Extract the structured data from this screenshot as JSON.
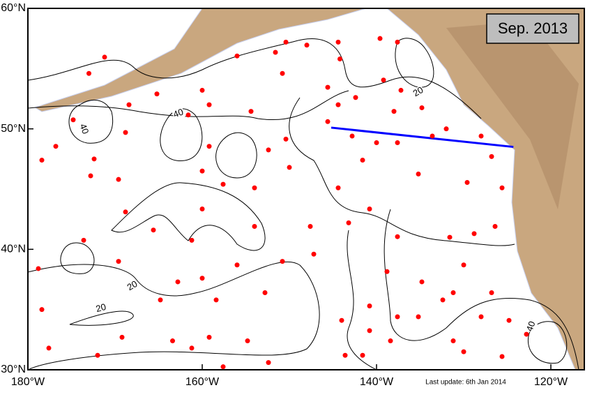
{
  "map": {
    "title": "Sep. 2013",
    "footnote": "Last update: 6th Jan 2014",
    "xlim": [
      -180,
      -116.16
    ],
    "ylim": [
      30,
      60
    ],
    "xticks": [
      {
        "value": -180,
        "label": "180°W"
      },
      {
        "value": -160,
        "label": "160°W"
      },
      {
        "value": -140,
        "label": "140°W"
      },
      {
        "value": -120,
        "label": "120°W"
      }
    ],
    "yticks": [
      {
        "value": 30,
        "label": "30°N"
      },
      {
        "value": 40,
        "label": "40°N"
      },
      {
        "value": 50,
        "label": "50°N"
      },
      {
        "value": 60,
        "label": "60°N"
      }
    ],
    "contour_labels": [
      "40",
      "40",
      "20",
      "20",
      "20",
      "40"
    ],
    "section": {
      "color": "#0000ff",
      "lon": [
        -145.2,
        -124.3
      ],
      "lat": [
        50.1,
        48.5
      ]
    },
    "floats": {
      "color": "#ff0000",
      "lon": [
        -171.2,
        -173.0,
        -174.8,
        -176.8,
        -172.4,
        -172.8,
        -169.6,
        -168.8,
        -173.6,
        -169.6,
        -178.4,
        -177.6,
        -172.0,
        -169.2,
        -164.8,
        -163.4,
        -161.2,
        -159.2,
        -157.6,
        -154.8,
        -152.4,
        -152.8,
        -150.8,
        -147.2,
        -147.6,
        -154.0,
        -156.0,
        -158.4,
        -160.0,
        -162.8,
        -165.6,
        -161.2,
        -160.0,
        -157.6,
        -154.0,
        -150.0,
        -152.4,
        -150.4,
        -154.4,
        -159.2,
        -161.6,
        -160.0,
        -165.2,
        -168.4,
        -168.8,
        -159.2,
        -160.0,
        -156.0,
        -151.6,
        -150.4,
        -148.0,
        -150.8,
        -145.6,
        -144.4,
        -145.6,
        -144.2,
        -144.4,
        -142.4,
        -142.8,
        -140.0,
        -141.6,
        -139.6,
        -137.6,
        -139.2,
        -137.2,
        -138.0,
        -137.6,
        -134.8,
        -133.6,
        -135.2,
        -132.0,
        -129.6,
        -128.0,
        -126.8,
        -125.6,
        -126.4,
        -128.8,
        -131.6,
        -130.0,
        -131.2,
        -128.0,
        -126.8,
        -124.8,
        -125.6,
        -122.8,
        -132.4,
        -134.8,
        -135.2,
        -137.6,
        -138.8,
        -137.6,
        -140.8,
        -140.8,
        -140.8,
        -138.4,
        -141.6,
        -143.6,
        -144.0,
        -144.4,
        -143.2,
        -131.2,
        -130.0,
        -178.4,
        -178.8
      ],
      "lat": [
        55.95,
        54.6,
        50.75,
        48.55,
        47.5,
        46.1,
        45.8,
        43.1,
        40.75,
        39.0,
        35.0,
        31.8,
        31.2,
        32.7,
        35.8,
        32.4,
        31.8,
        32.7,
        30.25,
        32.4,
        30.6,
        36.4,
        39.0,
        39.6,
        41.9,
        41.9,
        38.7,
        35.8,
        37.6,
        37.3,
        41.6,
        40.75,
        43.35,
        45.4,
        45.1,
        46.8,
        48.25,
        49.15,
        51.45,
        52.0,
        51.15,
        53.2,
        52.9,
        52.0,
        49.7,
        48.55,
        46.5,
        56.05,
        56.35,
        57.2,
        56.95,
        54.6,
        53.45,
        52.0,
        50.6,
        55.8,
        57.2,
        52.6,
        49.4,
        48.85,
        47.4,
        57.5,
        57.2,
        54.05,
        53.2,
        51.45,
        48.85,
        51.75,
        49.4,
        46.25,
        50.0,
        45.55,
        49.4,
        47.7,
        45.1,
        41.9,
        41.3,
        41.0,
        38.7,
        36.4,
        34.4,
        36.4,
        34.1,
        31.1,
        32.95,
        35.8,
        37.3,
        34.4,
        34.4,
        38.15,
        41.05,
        43.35,
        35.3,
        33.25,
        32.4,
        31.2,
        31.2,
        34.1,
        45.1,
        42.2,
        32.4,
        31.5,
        47.4,
        38.4
      ]
    }
  }
}
